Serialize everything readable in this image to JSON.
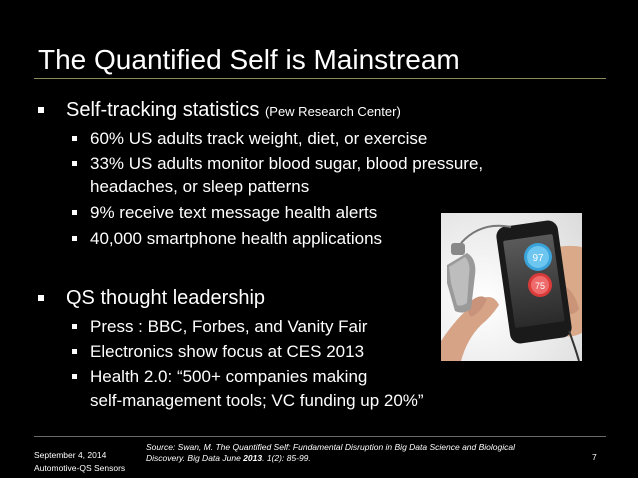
{
  "slide": {
    "title": "The Quantified Self is Mainstream",
    "sections": [
      {
        "heading": "Self-tracking statistics",
        "heading_note": "(Pew Research Center)",
        "items": [
          "60% US adults track weight, diet, or exercise",
          "33% US adults monitor blood sugar, blood pressure,",
          "headaches, or sleep patterns",
          "9% receive text message health alerts",
          "40,000 smartphone health applications"
        ]
      },
      {
        "heading": "QS thought leadership",
        "items": [
          "Press : BBC, Forbes, and Vanity Fair",
          "Electronics show focus at CES 2013",
          "Health 2.0: “500+ companies  making",
          "self-management tools; VC funding up 20%”"
        ]
      }
    ],
    "image": {
      "description_icon": "pulse-oximeter-smartphone-photo",
      "readings": [
        "97",
        "75"
      ]
    },
    "footer": {
      "date": "September 4, 2014",
      "event": "Automotive-QS Sensors",
      "source_line1": "Source: Swan, M. The Quantified Self: Fundamental Disruption in Big Data Science and Biological",
      "source_line2_a": "Discovery. Big Data June ",
      "source_line2_year": "2013",
      "source_line2_b": ". 1(2): 85-99.",
      "page_number": "7"
    }
  }
}
